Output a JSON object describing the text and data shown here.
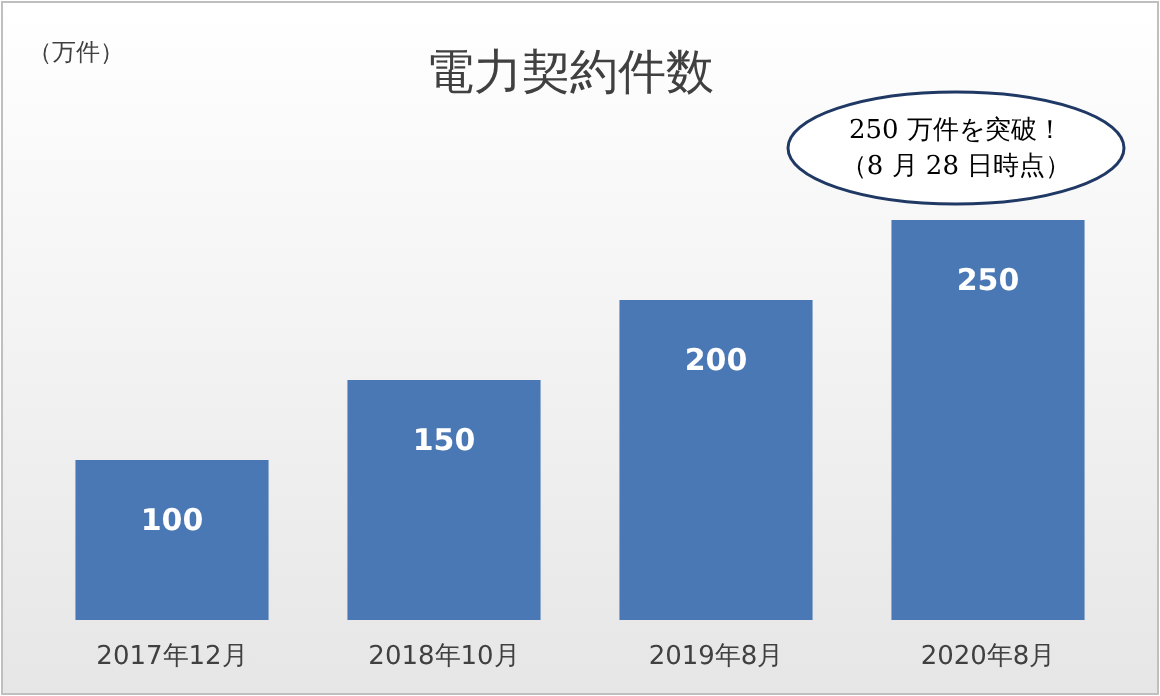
{
  "chart_data": {
    "type": "bar",
    "title": "電力契約件数",
    "categories": [
      "2017年12月",
      "2018年10月",
      "2019年8月",
      "2020年8月"
    ],
    "values": [
      100,
      150,
      200,
      250
    ],
    "color": "#4a78b5",
    "data_labels": true,
    "annotations": [
      "（万件）",
      "250 万件を突破！",
      "（8 月 28 日時点）"
    ]
  }
}
